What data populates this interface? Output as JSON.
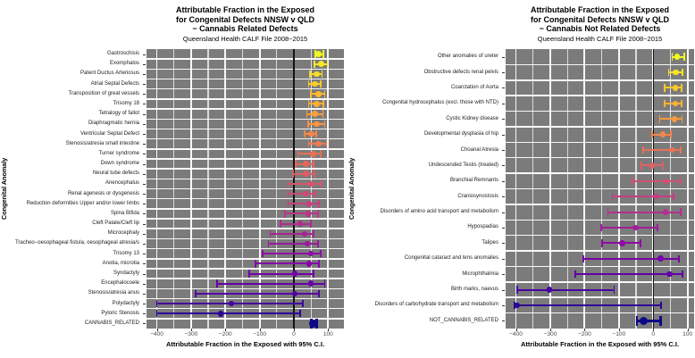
{
  "figure_title": "Attributable Fraction forest plots, NNSW v QLD",
  "chart_data": [
    {
      "type": "scatter",
      "subtype": "forest-errorbar",
      "title_lines": [
        "Attributable Fraction in the Exposed",
        "for Congenital Defects NNSW v QLD",
        "− Cannabis Related Defects"
      ],
      "subtitle": "Queensland Health CALF File 2008−2015",
      "xlabel": "Attributable Fraction in the Exposed with 95% C.I.",
      "ylabel": "Congenital Anomaly",
      "xlim": [
        -430,
        146
      ],
      "grid": "on",
      "legend": "none",
      "zero_line": 0,
      "panel_bg": "#7b7b7b",
      "xticks": [
        {
          "v": -400,
          "label": "−400"
        },
        {
          "v": -300,
          "label": "−300"
        },
        {
          "v": -200,
          "label": "−200"
        },
        {
          "v": -100,
          "label": "−100"
        },
        {
          "v": 0,
          "label": "0"
        },
        {
          "v": 100,
          "label": "100"
        }
      ],
      "xticks_minor": [
        -350,
        -250,
        -150,
        -50,
        50
      ],
      "rows": [
        {
          "label": "Gastroschisis",
          "value": 72,
          "lo": 62,
          "hi": 86,
          "color": "#f0f921",
          "bold": false
        },
        {
          "label": "Exomphalos",
          "value": 80,
          "lo": 59,
          "hi": 98,
          "color": "#f4e829",
          "bold": false
        },
        {
          "label": "Patent Ductus Arteriosus",
          "value": 66,
          "lo": 48,
          "hi": 82,
          "color": "#f9da26",
          "bold": false
        },
        {
          "label": "Atrial Septal Defects",
          "value": 62,
          "lo": 43,
          "hi": 78,
          "color": "#fccc26",
          "bold": false
        },
        {
          "label": "Transposition of great vessels",
          "value": 71,
          "lo": 50,
          "hi": 90,
          "color": "#feba2c",
          "bold": false
        },
        {
          "label": "Trisomy 18",
          "value": 66,
          "lo": 43,
          "hi": 87,
          "color": "#fdad32",
          "bold": false
        },
        {
          "label": "Tetralogy of fallot",
          "value": 62,
          "lo": 38,
          "hi": 85,
          "color": "#fc9f37",
          "bold": false
        },
        {
          "label": "Diaphragmatic hernia",
          "value": 66,
          "lo": 41,
          "hi": 90,
          "color": "#f9943f",
          "bold": false
        },
        {
          "label": "Ventricular Septal Defect",
          "value": 51,
          "lo": 31,
          "hi": 66,
          "color": "#f58646",
          "bold": false
        },
        {
          "label": "Stenosis/atresia small intestine",
          "value": 72,
          "lo": 43,
          "hi": 95,
          "color": "#f07b4e",
          "bold": false
        },
        {
          "label": "Turner syndrome",
          "value": 56,
          "lo": 12,
          "hi": 79,
          "color": "#ea6f55",
          "bold": false
        },
        {
          "label": "Down syndrome",
          "value": 36,
          "lo": 5,
          "hi": 57,
          "color": "#e4655e",
          "bold": false
        },
        {
          "label": "Neural tube defects",
          "value": 36,
          "lo": -2,
          "hi": 59,
          "color": "#de5d66",
          "bold": false
        },
        {
          "label": "Anencephalus",
          "value": 51,
          "lo": -17,
          "hi": 79,
          "color": "#d6536f",
          "bold": false
        },
        {
          "label": "Renal agenesis or dysgenesis",
          "value": 35,
          "lo": -17,
          "hi": 62,
          "color": "#cd4a76",
          "bold": false
        },
        {
          "label": "Reduction deformities Upper and/or lower limbs",
          "value": 44,
          "lo": -17,
          "hi": 72,
          "color": "#c6417f",
          "bold": false
        },
        {
          "label": "Spina Bifida",
          "value": 42,
          "lo": -25,
          "hi": 71,
          "color": "#bc3587",
          "bold": false
        },
        {
          "label": "Cleft Palate/Cleft lip",
          "value": 18,
          "lo": -39,
          "hi": 50,
          "color": "#b22b8f",
          "bold": false
        },
        {
          "label": "Microcephaly",
          "value": 31,
          "lo": -69,
          "hi": 57,
          "color": "#a82296",
          "bold": false
        },
        {
          "label": "Tracheo−oesophageal fistula, oesophageal atresia/s",
          "value": 39,
          "lo": -74,
          "hi": 71,
          "color": "#9c199d",
          "bold": false
        },
        {
          "label": "Trisomy 13",
          "value": 50,
          "lo": -92,
          "hi": 79,
          "color": "#8f0da4",
          "bold": false
        },
        {
          "label": "Anotia, microtia",
          "value": 44,
          "lo": -112,
          "hi": 72,
          "color": "#8305a7",
          "bold": false
        },
        {
          "label": "Syndactyly",
          "value": 3,
          "lo": -130,
          "hi": 57,
          "color": "#7401a8",
          "bold": false
        },
        {
          "label": "Encephalocoele",
          "value": 50,
          "lo": -224,
          "hi": 90,
          "color": "#6600a7",
          "bold": false
        },
        {
          "label": "Stenosis/atresia anus",
          "value": 3,
          "lo": -287,
          "hi": 72,
          "color": "#5601a4",
          "bold": false
        },
        {
          "label": "Polydactyly",
          "value": -182,
          "lo": -400,
          "hi": 27,
          "color": "#43049d",
          "bold": false
        },
        {
          "label": "Pyloric Stenosis",
          "value": -214,
          "lo": -400,
          "hi": 18,
          "color": "#2d0594",
          "bold": false
        },
        {
          "label": "CANNABIS_RELATED",
          "value": 57,
          "lo": 51,
          "hi": 66,
          "color": "#0d0887",
          "bold": true
        }
      ]
    },
    {
      "type": "scatter",
      "subtype": "forest-errorbar",
      "title_lines": [
        "Attributable Fraction in the Exposed",
        "for Congenital Defects NNSW v QLD",
        "− Cannabis Not Related Defects"
      ],
      "subtitle": "Queensland Health CALF File 2008−2015",
      "xlabel": "Attributable Fraction in the Exposed with 95% C.I.",
      "ylabel": "Congenital Anomaly",
      "xlim": [
        -430,
        119
      ],
      "grid": "on",
      "legend": "none",
      "zero_line": 0,
      "panel_bg": "#7b7b7b",
      "xticks": [
        {
          "v": -400,
          "label": "−400"
        },
        {
          "v": -300,
          "label": "−300"
        },
        {
          "v": -200,
          "label": "−200"
        },
        {
          "v": -100,
          "label": "−100"
        },
        {
          "v": 0,
          "label": "0"
        },
        {
          "v": 100,
          "label": "100"
        }
      ],
      "xticks_minor": [
        -350,
        -250,
        -150,
        -50,
        50
      ],
      "rows": [
        {
          "label": "Other anomalies of ureter",
          "value": 70,
          "lo": 55,
          "hi": 90,
          "color": "#f0f921",
          "bold": false
        },
        {
          "label": "Obstructive defects renal pelvis",
          "value": 65,
          "lo": 45,
          "hi": 86,
          "color": "#f6e326",
          "bold": false
        },
        {
          "label": "Coarctation of Aorta",
          "value": 64,
          "lo": 34,
          "hi": 82,
          "color": "#fdc827",
          "bold": false
        },
        {
          "label": "Congenital hydrocephalus (excl. those with NTD)",
          "value": 64,
          "lo": 34,
          "hi": 83,
          "color": "#fdb130",
          "bold": false
        },
        {
          "label": "Cystic Kidney disease",
          "value": 62,
          "lo": 19,
          "hi": 84,
          "color": "#f99a3e",
          "bold": false
        },
        {
          "label": "Developmental dysplasia of hip",
          "value": 28,
          "lo": -3,
          "hi": 52,
          "color": "#f3864a",
          "bold": false
        },
        {
          "label": "Choanal Atresia",
          "value": 55,
          "lo": -29,
          "hi": 81,
          "color": "#e97257",
          "bold": false
        },
        {
          "label": "Undescended Testis (treated)",
          "value": -3,
          "lo": -34,
          "hi": 28,
          "color": "#df6164",
          "bold": false
        },
        {
          "label": "Branchial Remnants",
          "value": 38,
          "lo": -61,
          "hi": 79,
          "color": "#d25071",
          "bold": false
        },
        {
          "label": "Craniosynostosis",
          "value": 8,
          "lo": -119,
          "hi": 60,
          "color": "#c43e81",
          "bold": false
        },
        {
          "label": "Disorders of amino acid transport and metabolism",
          "value": 36,
          "lo": -132,
          "hi": 81,
          "color": "#b42f8e",
          "bold": false
        },
        {
          "label": "Hypospadias",
          "value": -52,
          "lo": -151,
          "hi": 12,
          "color": "#a21c9a",
          "bold": false
        },
        {
          "label": "Talipes",
          "value": -90,
          "lo": -150,
          "hi": -38,
          "color": "#8d0ba4",
          "bold": false
        },
        {
          "label": "Congenital cataract and lens anomalies",
          "value": 21,
          "lo": -203,
          "hi": 75,
          "color": "#7801a8",
          "bold": false
        },
        {
          "label": "Microphthalmia",
          "value": 48,
          "lo": -227,
          "hi": 86,
          "color": "#6000a6",
          "bold": false
        },
        {
          "label": "Birth marks, naevus",
          "value": -302,
          "lo": -397,
          "hi": -114,
          "color": "#46039f",
          "bold": false
        },
        {
          "label": "Disorders of carbohydrate transport and metabolism",
          "value": -397,
          "lo": -403,
          "hi": 22,
          "color": "#2d0594",
          "bold": false
        },
        {
          "label": "NOT_CANNABIS_RELATED",
          "value": -27,
          "lo": -48,
          "hi": 22,
          "color": "#0d0887",
          "bold": true
        }
      ]
    }
  ]
}
